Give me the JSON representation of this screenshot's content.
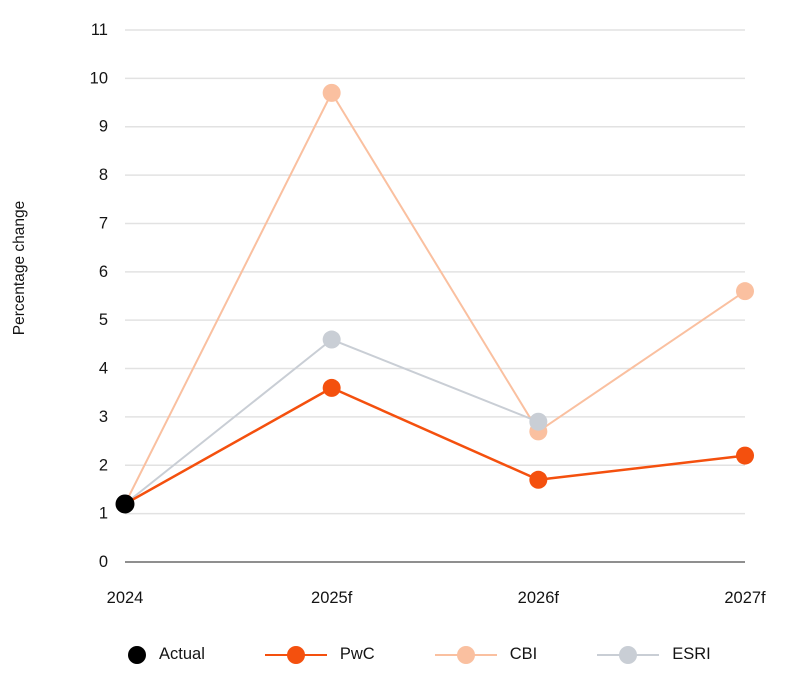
{
  "chart_data": {
    "type": "line",
    "title": "",
    "xlabel": "",
    "ylabel": "Percentage change",
    "categories": [
      "2024",
      "2025f",
      "2026f",
      "2027f"
    ],
    "ylim": [
      0,
      11
    ],
    "yticks": [
      0,
      1,
      2,
      3,
      4,
      5,
      6,
      7,
      8,
      9,
      10,
      11
    ],
    "grid": true,
    "legend_position": "bottom",
    "series": [
      {
        "name": "CBI",
        "color": "#FAC0A0",
        "line_width": 2,
        "marker_radius": 9,
        "line": true,
        "values": [
          1.2,
          9.7,
          2.7,
          5.6
        ]
      },
      {
        "name": "ESRI",
        "color": "#C9CED5",
        "line_width": 2,
        "marker_radius": 9,
        "line": true,
        "values": [
          1.2,
          4.6,
          2.9,
          null
        ]
      },
      {
        "name": "PwC",
        "color": "#F4500E",
        "line_width": 2.5,
        "marker_radius": 9,
        "line": true,
        "values": [
          1.2,
          3.6,
          1.7,
          2.2
        ]
      },
      {
        "name": "Actual",
        "color": "#000000",
        "line_width": 0,
        "marker_radius": 9.5,
        "line": false,
        "values": [
          1.2,
          null,
          null,
          null
        ]
      }
    ],
    "legend": [
      {
        "label": "Actual",
        "color": "#000000",
        "line": false
      },
      {
        "label": "PwC",
        "color": "#F4500E",
        "line": true
      },
      {
        "label": "CBI",
        "color": "#FAC0A0",
        "line": true
      },
      {
        "label": "ESRI",
        "color": "#C9CED5",
        "line": true
      }
    ]
  },
  "colors": {
    "gridline": "#E2E2E2",
    "zero_line": "#8F8F8F",
    "text": "#141414"
  }
}
